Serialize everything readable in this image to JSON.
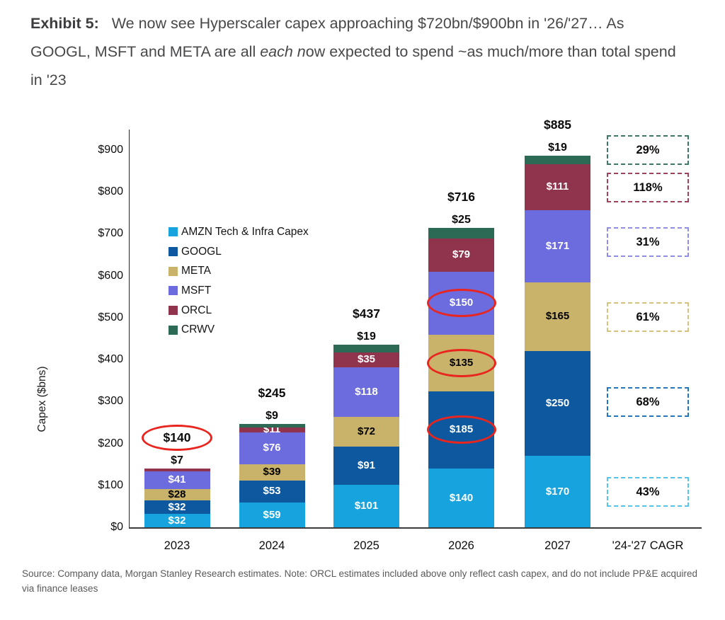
{
  "exhibit": {
    "prefix": "Exhibit 5:",
    "text_before_italic": "We now see Hyperscaler capex approaching $720bn/$900bn in '26/'27… As GOOGL, MSFT and META are all ",
    "italic": "each n",
    "text_after_italic": "ow expected to spend ~as much/more than total spend in '23"
  },
  "source_note": "Source: Company data, Morgan Stanley Research estimates. Note: ORCL estimates included above only reflect cash capex, and do not include PP&E acquired via finance leases",
  "chart_data": {
    "type": "bar",
    "stacked": true,
    "ylabel": "Capex ($bns)",
    "ylim": [
      0,
      900
    ],
    "grid": false,
    "legend_position": "top-left",
    "yticks": [
      {
        "value": 0,
        "label": "$0"
      },
      {
        "value": 100,
        "label": "$100"
      },
      {
        "value": 200,
        "label": "$200"
      },
      {
        "value": 300,
        "label": "$300"
      },
      {
        "value": 400,
        "label": "$400"
      },
      {
        "value": 500,
        "label": "$500"
      },
      {
        "value": 600,
        "label": "$600"
      },
      {
        "value": 700,
        "label": "$700"
      },
      {
        "value": 800,
        "label": "$800"
      },
      {
        "value": 900,
        "label": "$900"
      }
    ],
    "legend": [
      {
        "company": "AMZN",
        "label": "AMZN Tech & Infra Capex"
      },
      {
        "company": "GOOGL",
        "label": "GOOGL"
      },
      {
        "company": "META",
        "label": "META"
      },
      {
        "company": "MSFT",
        "label": "MSFT"
      },
      {
        "company": "ORCL",
        "label": "ORCL"
      },
      {
        "company": "CRWV",
        "label": "CRWV"
      }
    ],
    "colors": {
      "AMZN": "#17A3DE",
      "GOOGL": "#0D589E",
      "META": "#C9B36A",
      "MSFT": "#6C6CDF",
      "ORCL": "#90344E",
      "CRWV": "#2C6A56"
    },
    "annotation_color": "#E8251F",
    "categories": [
      "2023",
      "2024",
      "2025",
      "2026",
      "2027"
    ],
    "bars": [
      {
        "year": "2023",
        "total": 140,
        "total_label": "$140",
        "total_circled": true,
        "top_label": "$7",
        "segments": [
          {
            "company": "AMZN",
            "value": 32,
            "label": "$32"
          },
          {
            "company": "GOOGL",
            "value": 32,
            "label": "$32"
          },
          {
            "company": "META",
            "value": 28,
            "label": "$28",
            "dark_label": true
          },
          {
            "company": "MSFT",
            "value": 41,
            "label": "$41"
          },
          {
            "company": "ORCL",
            "value": 7,
            "label": ""
          }
        ]
      },
      {
        "year": "2024",
        "total": 245,
        "total_label": "$245",
        "total_circled": false,
        "top_label": "$9",
        "segments": [
          {
            "company": "AMZN",
            "value": 59,
            "label": "$59"
          },
          {
            "company": "GOOGL",
            "value": 53,
            "label": "$53"
          },
          {
            "company": "META",
            "value": 39,
            "label": "$39",
            "dark_label": true
          },
          {
            "company": "MSFT",
            "value": 76,
            "label": "$76"
          },
          {
            "company": "ORCL",
            "value": 11,
            "label": "$11"
          },
          {
            "company": "CRWV",
            "value": 9,
            "label": ""
          }
        ]
      },
      {
        "year": "2025",
        "total": 437,
        "total_label": "$437",
        "total_circled": false,
        "top_label": "$19",
        "segments": [
          {
            "company": "AMZN",
            "value": 101,
            "label": "$101"
          },
          {
            "company": "GOOGL",
            "value": 91,
            "label": "$91"
          },
          {
            "company": "META",
            "value": 72,
            "label": "$72",
            "dark_label": true
          },
          {
            "company": "MSFT",
            "value": 118,
            "label": "$118"
          },
          {
            "company": "ORCL",
            "value": 35,
            "label": "$35"
          },
          {
            "company": "CRWV",
            "value": 19,
            "label": ""
          }
        ]
      },
      {
        "year": "2026",
        "total": 716,
        "total_label": "$716",
        "total_circled": false,
        "top_label": "$25",
        "segments": [
          {
            "company": "AMZN",
            "value": 140,
            "label": "$140"
          },
          {
            "company": "GOOGL",
            "value": 185,
            "label": "$185",
            "circled": true
          },
          {
            "company": "META",
            "value": 135,
            "label": "$135",
            "dark_label": true,
            "circled": true
          },
          {
            "company": "MSFT",
            "value": 150,
            "label": "$150",
            "circled": true
          },
          {
            "company": "ORCL",
            "value": 79,
            "label": "$79"
          },
          {
            "company": "CRWV",
            "value": 25,
            "label": ""
          }
        ]
      },
      {
        "year": "2027",
        "total": 885,
        "total_label": "$885",
        "total_circled": false,
        "top_label": "$19",
        "segments": [
          {
            "company": "AMZN",
            "value": 170,
            "label": "$170"
          },
          {
            "company": "GOOGL",
            "value": 250,
            "label": "$250"
          },
          {
            "company": "META",
            "value": 165,
            "label": "$165",
            "dark_label": true
          },
          {
            "company": "MSFT",
            "value": 171,
            "label": "$171"
          },
          {
            "company": "ORCL",
            "value": 111,
            "label": "$111"
          },
          {
            "company": "CRWV",
            "value": 19,
            "label": ""
          }
        ]
      }
    ],
    "cagr_column": {
      "axis_label": "'24-'27 CAGR",
      "boxes": [
        {
          "company": "CRWV",
          "label": "29%",
          "border_color": "#3A7A66"
        },
        {
          "company": "ORCL",
          "label": "118%",
          "border_color": "#A04259"
        },
        {
          "company": "MSFT",
          "label": "31%",
          "border_color": "#8F8FEA"
        },
        {
          "company": "META",
          "label": "61%",
          "border_color": "#D6C47E"
        },
        {
          "company": "GOOGL",
          "label": "68%",
          "border_color": "#2277BE"
        },
        {
          "company": "AMZN",
          "label": "43%",
          "border_color": "#55C4F0"
        }
      ]
    }
  }
}
